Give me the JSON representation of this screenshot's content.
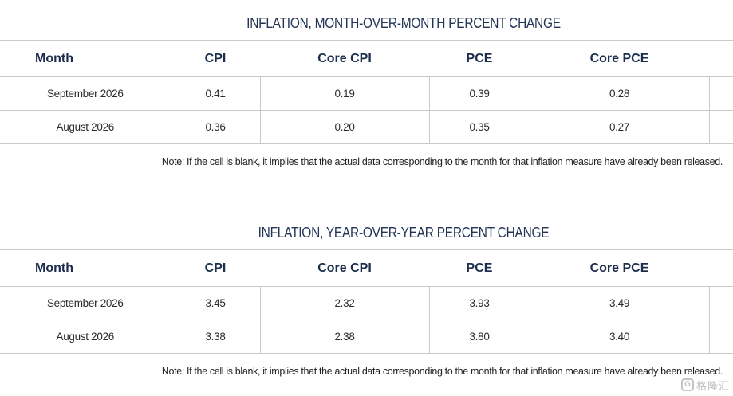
{
  "mom": {
    "title": "INFLATION, MONTH-OVER-MONTH PERCENT CHANGE",
    "headers": [
      "Month",
      "CPI",
      "Core CPI",
      "PCE",
      "Core PCE",
      ""
    ],
    "rows": [
      [
        "September 2026",
        "0.41",
        "0.19",
        "0.39",
        "0.28",
        ""
      ],
      [
        "August 2026",
        "0.36",
        "0.20",
        "0.35",
        "0.27",
        ""
      ]
    ],
    "note": "Note: If the cell is blank, it implies that the actual data corresponding to the month for that inflation measure have already been released."
  },
  "yoy": {
    "title": "INFLATION, YEAR-OVER-YEAR PERCENT CHANGE",
    "headers": [
      "Month",
      "CPI",
      "Core CPI",
      "PCE",
      "Core PCE",
      ""
    ],
    "rows": [
      [
        "September 2026",
        "3.45",
        "2.32",
        "3.93",
        "3.49",
        ""
      ],
      [
        "August 2026",
        "3.38",
        "2.38",
        "3.80",
        "3.40",
        ""
      ]
    ],
    "note": "Note: If the cell is blank, it implies that the actual data corresponding to the month for that inflation measure have already been released."
  },
  "watermark": {
    "logo_glyph": "G",
    "text": "格隆汇"
  }
}
